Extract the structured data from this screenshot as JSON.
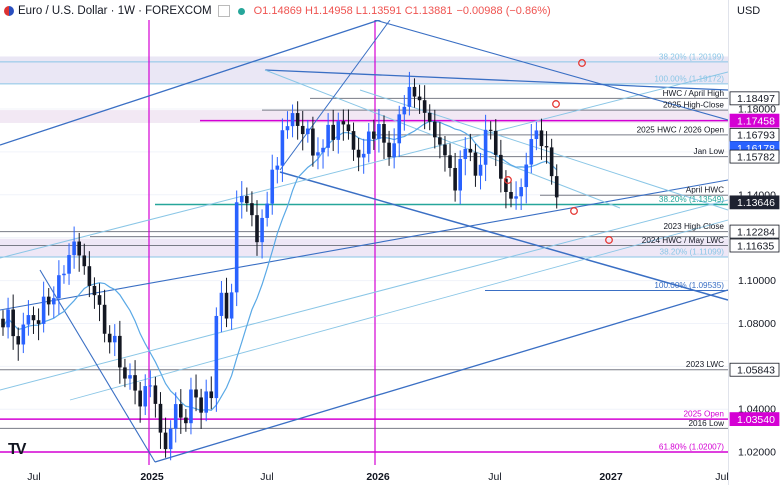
{
  "header": {
    "symbol": "Euro / U.S. Dollar · 1W · FOREXCOM",
    "open": "O1.14869",
    "high": "H1.14958",
    "low": "L1.13591",
    "close": "C1.13881",
    "change": "−0.00988 (−0.86%)",
    "currency": "USD"
  },
  "colors": {
    "up": "#2962ff",
    "down": "#131722",
    "trend": "#3a6fc4",
    "fib": "#8ac6e6",
    "magenta": "#d400d4",
    "ma": "#5aa9e6",
    "gray": "#787b86",
    "teal": "#26a69a",
    "red": "#e57373"
  },
  "chart_data": {
    "type": "candlestick",
    "timeframe": "1W",
    "x_ticks": [
      "Jul",
      "2025",
      "Jul",
      "2026",
      "Jul",
      "2027",
      "Jul"
    ],
    "ylim": [
      1.014,
      1.2215
    ],
    "y_ticks": [
      1.02,
      1.04,
      1.06,
      1.08,
      1.1,
      1.12,
      1.14,
      1.16,
      1.18
    ],
    "y_tick_labels": [
      "1.02000",
      "1.04000",
      "1.06000",
      "1.08000",
      "1.10000",
      "1.12000",
      "1.14000",
      "1.16000",
      "1.18000"
    ],
    "price_badges": [
      {
        "label": "1.18497",
        "value": 1.18497,
        "style": "outline"
      },
      {
        "label": "1.17458",
        "value": 1.17458,
        "style": "magenta"
      },
      {
        "label": "1.16793",
        "value": 1.16793,
        "style": "outline"
      },
      {
        "label": "1.16178",
        "value": 1.16178,
        "style": "blue"
      },
      {
        "label": "1.15782",
        "value": 1.15782,
        "style": "outline"
      },
      {
        "label": "1.13646",
        "value": 1.13646,
        "style": "dark"
      },
      {
        "label": "1.12284",
        "value": 1.12284,
        "style": "outline"
      },
      {
        "label": "1.11635",
        "value": 1.11635,
        "style": "outline"
      },
      {
        "label": "1.05843",
        "value": 1.05843,
        "style": "outline"
      },
      {
        "label": "1.03540",
        "value": 1.0354,
        "style": "magenta"
      }
    ],
    "levels": [
      {
        "value": 1.20199,
        "label": "38.20% (1.20199)",
        "color": "fib"
      },
      {
        "value": 1.19172,
        "label": "100.00% (1.19172)",
        "color": "fib"
      },
      {
        "value": 1.18497,
        "label": "HWC / April High",
        "color": "gray"
      },
      {
        "value": 1.1795,
        "label": "2025 High-Close",
        "color": "gray"
      },
      {
        "value": 1.17458,
        "label": "",
        "color": "magenta"
      },
      {
        "value": 1.16793,
        "label": "2025 HWC / 2026 Open",
        "color": "gray"
      },
      {
        "value": 1.15782,
        "label": "Jan Low",
        "color": "gray"
      },
      {
        "value": 1.1398,
        "label": "April HWC",
        "color": "gray"
      },
      {
        "value": 1.13549,
        "label": "38.20% (1.13549)",
        "color": "teal"
      },
      {
        "value": 1.12284,
        "label": "2023 High Close",
        "color": "gray"
      },
      {
        "value": 1.11635,
        "label": "2024 HWC / May LWC",
        "color": "gray"
      },
      {
        "value": 1.11099,
        "label": "38.20% (1.11099)",
        "color": "fib"
      },
      {
        "value": 1.09535,
        "label": "100.00% (1.09535)",
        "color": "trend"
      },
      {
        "value": 1.05843,
        "label": "2023 LWC",
        "color": "gray"
      },
      {
        "value": 1.0354,
        "label": "2025 Open",
        "color": "magenta"
      },
      {
        "value": 1.0311,
        "label": "2016 Low",
        "color": "gray"
      },
      {
        "value": 1.02007,
        "label": "61.80% (1.02007)",
        "color": "magenta"
      }
    ],
    "close_series": [
      1.0782,
      1.0865,
      1.0741,
      1.0702,
      1.0795,
      1.0839,
      1.0815,
      1.0798,
      1.0925,
      1.0889,
      1.0918,
      1.1025,
      1.1032,
      1.1119,
      1.1182,
      1.1117,
      1.1067,
      1.0975,
      1.0932,
      1.0887,
      1.0752,
      1.0712,
      1.0742,
      1.0595,
      1.0543,
      1.0559,
      1.0487,
      1.0413,
      1.0508,
      1.0511,
      1.0425,
      1.0291,
      1.0214,
      1.0309,
      1.0424,
      1.0361,
      1.0335,
      1.0492,
      1.0455,
      1.0384,
      1.0483,
      1.0452,
      1.0835,
      1.0943,
      1.0823,
      1.0945,
      1.1365,
      1.1394,
      1.1361,
      1.1305,
      1.1179,
      1.1292,
      1.1359,
      1.1517,
      1.1536,
      1.1701,
      1.172,
      1.1781,
      1.1721,
      1.1683,
      1.1709,
      1.1583,
      1.1598,
      1.1619,
      1.1726,
      1.1656,
      1.1743,
      1.1728,
      1.1697,
      1.161,
      1.1574,
      1.1591,
      1.1695,
      1.1661,
      1.173,
      1.1643,
      1.1575,
      1.164,
      1.1775,
      1.181,
      1.1903,
      1.1858,
      1.1841,
      1.1782,
      1.1741,
      1.1668,
      1.1634,
      1.1584,
      1.1525,
      1.142,
      1.1567,
      1.1614,
      1.1597,
      1.1489,
      1.154,
      1.1703,
      1.1698,
      1.1586,
      1.1475,
      1.1413,
      1.1382,
      1.1393,
      1.1436,
      1.1541,
      1.166,
      1.17,
      1.1627,
      1.1621,
      1.1487,
      1.1388
    ]
  }
}
